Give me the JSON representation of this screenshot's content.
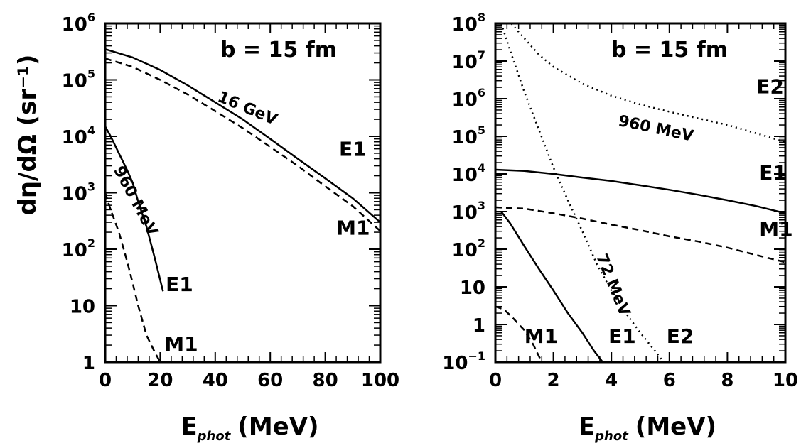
{
  "chart_data": [
    {
      "type": "line",
      "ylabel": "dη/dΩ (sr⁻¹)",
      "xlabel": "E",
      "xlabel_sub": "phot",
      "xlabel_unit": "(MeV)",
      "annotation": "b = 15 fm",
      "xlim": [
        0,
        100
      ],
      "ylim": [
        1,
        1000000
      ],
      "yscale": "log",
      "x_ticks": [
        0,
        20,
        40,
        60,
        80,
        100
      ],
      "x_tick_labels": [
        "0",
        "20",
        "40",
        "60",
        "80",
        "100"
      ],
      "y_tick_labels": [
        {
          "value": 1,
          "base": "1",
          "exp": ""
        },
        {
          "value": 10,
          "base": "10",
          "exp": ""
        },
        {
          "value": 100,
          "base": "10",
          "exp": "2"
        },
        {
          "value": 1000,
          "base": "10",
          "exp": "3"
        },
        {
          "value": 10000,
          "base": "10",
          "exp": "4"
        },
        {
          "value": 100000,
          "base": "10",
          "exp": "5"
        },
        {
          "value": 1000000,
          "base": "10",
          "exp": "6"
        }
      ],
      "series": [
        {
          "label": "E1",
          "group": "16 GeV",
          "style": "solid",
          "x": [
            0,
            10,
            20,
            30,
            40,
            50,
            60,
            70,
            80,
            90,
            100
          ],
          "y": [
            350000,
            250000,
            150000,
            80000,
            40000,
            20000,
            9000,
            4000,
            1800,
            800,
            300
          ]
        },
        {
          "label": "M1",
          "group": "16 GeV",
          "style": "dashed",
          "x": [
            0,
            10,
            20,
            30,
            40,
            50,
            60,
            70,
            80,
            90,
            100
          ],
          "y": [
            240000,
            170000,
            100000,
            55000,
            28000,
            14000,
            6500,
            3000,
            1300,
            580,
            210
          ]
        },
        {
          "label": "E1",
          "group": "960 MeV",
          "style": "solid",
          "x": [
            0,
            2,
            5,
            8,
            10,
            12,
            15,
            18,
            21
          ],
          "y": [
            15000,
            10000,
            5000,
            2500,
            1500,
            700,
            250,
            70,
            18
          ]
        },
        {
          "label": "M1",
          "group": "960 MeV",
          "style": "dashed",
          "x": [
            0,
            2,
            5,
            8,
            10,
            12,
            15,
            18,
            20
          ],
          "y": [
            1000,
            500,
            200,
            60,
            25,
            10,
            3,
            1.5,
            1
          ]
        }
      ],
      "curve_labels": [
        {
          "text": "16 GeV",
          "x": 51,
          "y": 26000,
          "angle": 23
        },
        {
          "text": "960 MeV",
          "x": 9.5,
          "y": 650,
          "angle": 62
        },
        {
          "text": "E1",
          "x": 85,
          "y": 4500
        },
        {
          "text": "M1",
          "x": 84,
          "y": 180
        },
        {
          "text": "E1",
          "x": 22,
          "y": 18
        },
        {
          "text": "M1",
          "x": 21.5,
          "y": 1.6
        }
      ]
    },
    {
      "type": "line",
      "xlabel": "E",
      "xlabel_sub": "phot",
      "xlabel_unit": "(MeV)",
      "annotation": "b = 15 fm",
      "xlim": [
        0,
        10
      ],
      "ylim": [
        0.1,
        100000000
      ],
      "yscale": "log",
      "x_ticks": [
        0,
        2,
        4,
        6,
        8,
        10
      ],
      "x_tick_labels": [
        "0",
        "2",
        "4",
        "6",
        "8",
        "10"
      ],
      "y_tick_labels": [
        {
          "value": 0.1,
          "base": "10",
          "exp": "−1"
        },
        {
          "value": 1,
          "base": "1",
          "exp": ""
        },
        {
          "value": 10,
          "base": "10",
          "exp": ""
        },
        {
          "value": 100,
          "base": "10",
          "exp": "2"
        },
        {
          "value": 1000,
          "base": "10",
          "exp": "3"
        },
        {
          "value": 10000,
          "base": "10",
          "exp": "4"
        },
        {
          "value": 100000,
          "base": "10",
          "exp": "5"
        },
        {
          "value": 1000000,
          "base": "10",
          "exp": "6"
        },
        {
          "value": 10000000,
          "base": "10",
          "exp": "7"
        },
        {
          "value": 100000000,
          "base": "10",
          "exp": "8"
        }
      ],
      "series": [
        {
          "label": "E2",
          "group": "960 MeV",
          "style": "dotted",
          "x": [
            0.55,
            1,
            1.5,
            2,
            3,
            4,
            5,
            6,
            7,
            8,
            9,
            10
          ],
          "y": [
            100000000,
            40000000,
            15000000,
            7000000,
            2500000,
            1200000,
            700000,
            450000,
            300000,
            200000,
            120000,
            70000
          ]
        },
        {
          "label": "E1",
          "group": "960 MeV",
          "style": "solid",
          "x": [
            0,
            1,
            2,
            3,
            4,
            5,
            6,
            7,
            8,
            9,
            10
          ],
          "y": [
            13000,
            12000,
            10000,
            8000,
            6500,
            5000,
            3800,
            2800,
            2000,
            1400,
            900
          ]
        },
        {
          "label": "M1",
          "group": "960 MeV",
          "style": "dashed",
          "x": [
            0,
            1,
            2,
            3,
            4,
            5,
            6,
            7,
            8,
            9,
            10
          ],
          "y": [
            1300,
            1200,
            900,
            650,
            450,
            320,
            220,
            160,
            110,
            70,
            45
          ]
        },
        {
          "label": "E2",
          "group": "72 MeV",
          "style": "dotted",
          "x": [
            0.2,
            0.5,
            1,
            1.5,
            2,
            2.5,
            3,
            3.5,
            4,
            4.5,
            5,
            5.5,
            5.8
          ],
          "y": [
            100000000,
            20000000,
            1500000,
            150000,
            15000,
            2000,
            300,
            40,
            8,
            2,
            0.6,
            0.2,
            0.1
          ]
        },
        {
          "label": "E1",
          "group": "72 MeV",
          "style": "solid",
          "x": [
            0.2,
            0.5,
            1,
            1.5,
            2,
            2.5,
            3,
            3.4,
            3.7
          ],
          "y": [
            1000,
            500,
            120,
            30,
            8,
            2,
            0.6,
            0.2,
            0.1
          ]
        },
        {
          "label": "M1",
          "group": "72 MeV",
          "style": "dashed",
          "x": [
            0,
            0.3,
            0.6,
            1,
            1.3,
            1.6
          ],
          "y": [
            3,
            2.5,
            1.5,
            0.7,
            0.3,
            0.1
          ]
        }
      ],
      "curve_labels": [
        {
          "text": "960 MeV",
          "x": 5.5,
          "y": 120000,
          "angle": 12
        },
        {
          "text": "72 MeV",
          "x": 3.9,
          "y": 10,
          "angle": 68
        },
        {
          "text": "E2",
          "x": 9.0,
          "y": 1400000
        },
        {
          "text": "E1",
          "x": 9.1,
          "y": 7000
        },
        {
          "text": "M1",
          "x": 9.1,
          "y": 230
        },
        {
          "text": "M1",
          "x": 1.0,
          "y": 0.32
        },
        {
          "text": "E1",
          "x": 3.9,
          "y": 0.32
        },
        {
          "text": "E2",
          "x": 5.9,
          "y": 0.32
        }
      ]
    }
  ]
}
